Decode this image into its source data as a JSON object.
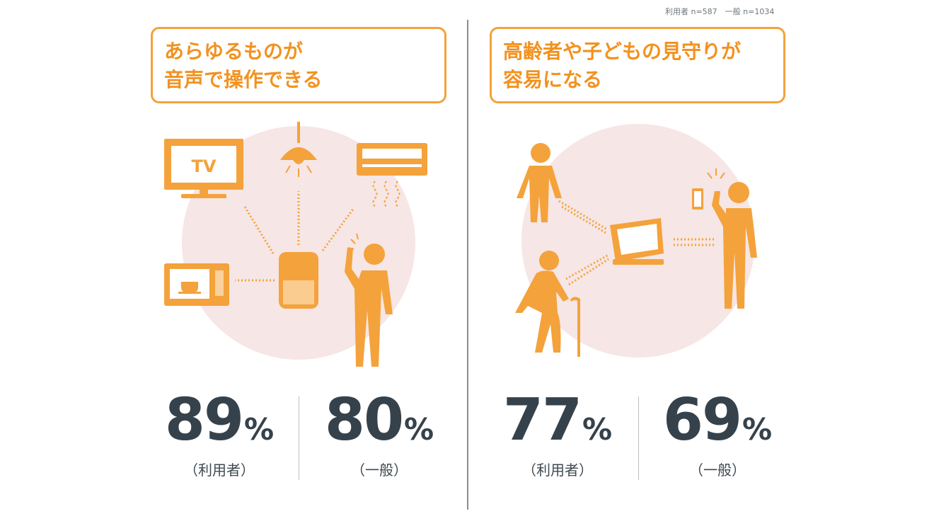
{
  "note": "利用者 n=587　一般 n=1034",
  "colors": {
    "accent": "#f4a23b",
    "circle": "#f6e6e5",
    "text": "#36424b"
  },
  "panels": [
    {
      "headline": [
        "あらゆるものが",
        "音声で操作できる"
      ],
      "device_labels": {
        "tv": "TV"
      },
      "stats": [
        {
          "value": "89",
          "unit": "%",
          "label": "（利用者）"
        },
        {
          "value": "80",
          "unit": "%",
          "label": "（一般）"
        }
      ]
    },
    {
      "headline": [
        "高齢者や子どもの見守りが",
        "容易になる"
      ],
      "stats": [
        {
          "value": "77",
          "unit": "%",
          "label": "（利用者）"
        },
        {
          "value": "69",
          "unit": "%",
          "label": "（一般）"
        }
      ]
    }
  ]
}
